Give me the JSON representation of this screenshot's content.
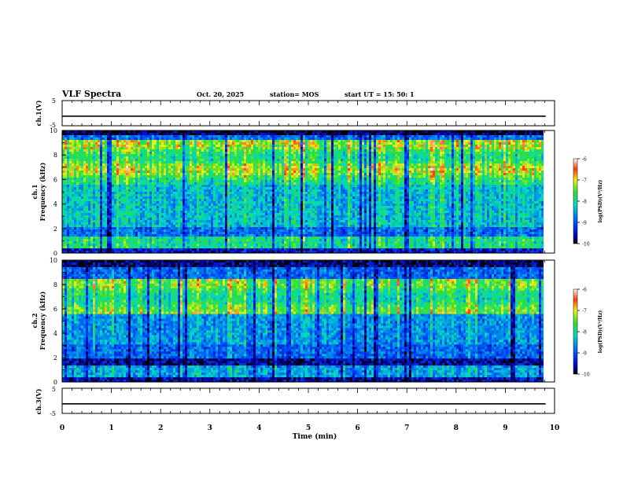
{
  "header": {
    "title": "VLF Spectra",
    "date": "Oct. 20, 2025",
    "station": "station= MOS",
    "start": "start  UT =  15: 50: 1"
  },
  "chart_data": [
    {
      "type": "line",
      "panel": "ch1-voltage",
      "ylabel": "ch.1(V)",
      "ylim": [
        -5,
        5
      ],
      "y_ticks": [
        "5",
        "-5"
      ],
      "x": [
        0,
        9.82
      ],
      "values": [
        -1.2,
        -1.2
      ]
    },
    {
      "type": "heatmap",
      "panel": "ch1-spectrogram",
      "ylabel_top": "ch.1",
      "ylabel": "Frequency (kHz)",
      "ylim": [
        0,
        10
      ],
      "y_ticks": [
        "0",
        "2",
        "4",
        "6",
        "8",
        "10"
      ],
      "colorbar": {
        "label": "log(PSD)(V²/Hz)",
        "range": [
          -10,
          -6
        ],
        "ticks": [
          "-6",
          "-7",
          "-8",
          "-9",
          "-10"
        ]
      }
    },
    {
      "type": "heatmap",
      "panel": "ch2-spectrogram",
      "ylabel_top": "ch.2",
      "ylabel": "Frequency (kHz)",
      "ylim": [
        0,
        10
      ],
      "y_ticks": [
        "0",
        "2",
        "4",
        "6",
        "8",
        "10"
      ],
      "colorbar": {
        "label": "log(PSD)(V²/Hz)",
        "range": [
          -10,
          -6
        ],
        "ticks": [
          "-6",
          "-7",
          "-8",
          "-9",
          "-10"
        ]
      }
    },
    {
      "type": "line",
      "panel": "ch3-voltage",
      "ylabel": "ch.3(V)",
      "ylim": [
        -5,
        5
      ],
      "y_ticks": [
        "5",
        "-5"
      ],
      "x": [
        0,
        9.82
      ],
      "values": [
        -1.2,
        -1.2
      ]
    }
  ],
  "x_axis": {
    "label": "Time (min)",
    "range": [
      0,
      10
    ],
    "ticks": [
      "0",
      "1",
      "2",
      "3",
      "4",
      "5",
      "6",
      "7",
      "8",
      "9",
      "10"
    ]
  }
}
